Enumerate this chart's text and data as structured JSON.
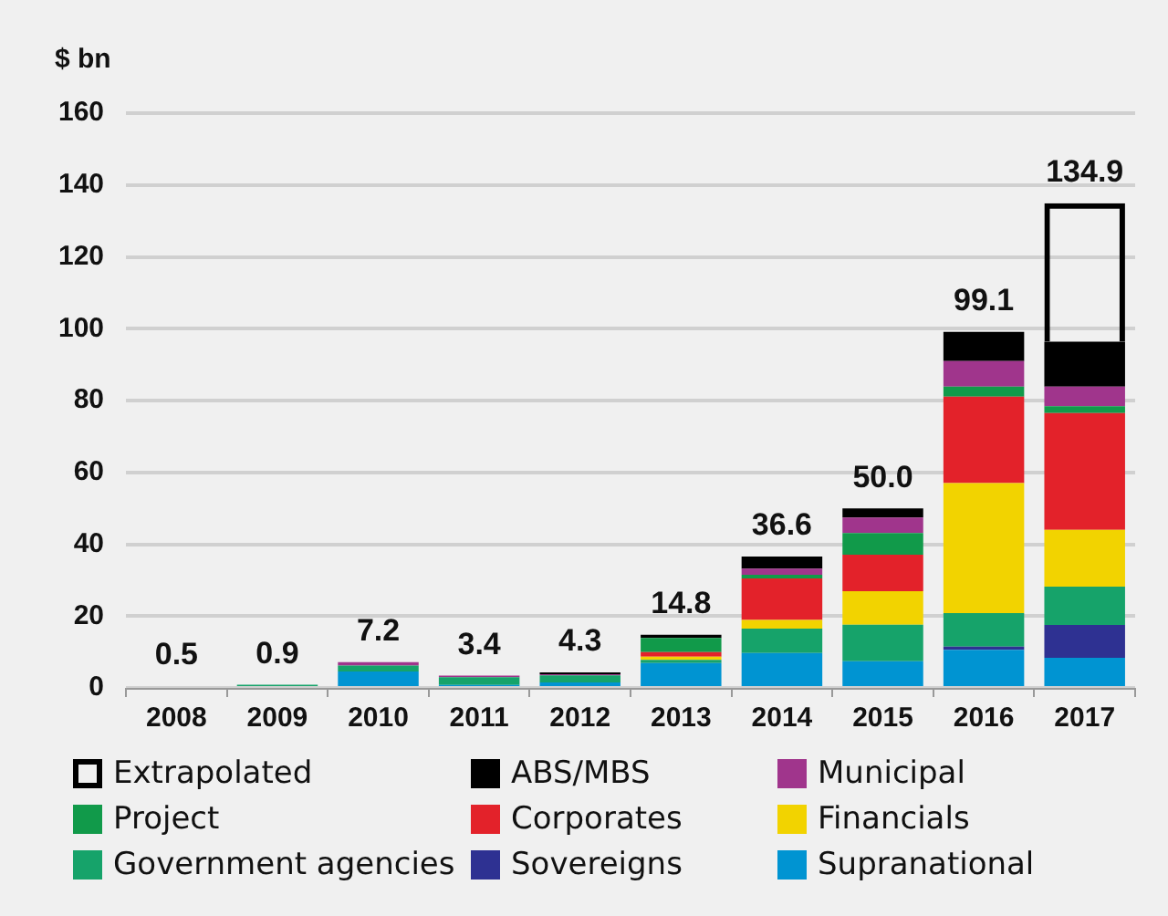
{
  "chart_data": {
    "type": "bar",
    "ylabel": "$ bn",
    "stacked": true,
    "grid": "y",
    "legend": "bottom",
    "categories": [
      "2008",
      "2009",
      "2010",
      "2011",
      "2012",
      "2013",
      "2014",
      "2015",
      "2016",
      "2017"
    ],
    "ylim": [
      0,
      160
    ],
    "yticks": [
      0,
      20,
      40,
      60,
      80,
      100,
      120,
      140,
      160
    ],
    "totals": [
      "0.5",
      "0.9",
      "7.2",
      "3.4",
      "4.3",
      "14.8",
      "36.6",
      "50.0",
      "99.1",
      "134.9"
    ],
    "series": [
      {
        "name": "Supranational",
        "color": "#0094d2",
        "values": [
          null,
          null,
          4.6,
          0.8,
          1.5,
          6.9,
          9.7,
          7.4,
          10.6,
          8.4
        ]
      },
      {
        "name": "Sovereigns",
        "color": "#2e3192",
        "values": [
          null,
          null,
          null,
          null,
          null,
          null,
          null,
          null,
          0.9,
          9.1
        ]
      },
      {
        "name": "Government agencies",
        "color": "#16a36a",
        "values": [
          null,
          0.9,
          1.6,
          2.2,
          2.0,
          0.9,
          6.8,
          10.2,
          9.3,
          10.7
        ]
      },
      {
        "name": "Financials",
        "color": "#f2d300",
        "values": [
          null,
          null,
          null,
          null,
          null,
          0.9,
          2.4,
          9.3,
          36.2,
          15.8
        ]
      },
      {
        "name": "Corporates",
        "color": "#e3222a",
        "values": [
          null,
          null,
          null,
          null,
          null,
          1.3,
          11.6,
          10.2,
          24.1,
          32.5
        ]
      },
      {
        "name": "Project",
        "color": "#119a4a",
        "values": [
          null,
          null,
          null,
          null,
          null,
          3.9,
          1.0,
          6.0,
          2.8,
          1.9
        ]
      },
      {
        "name": "Municipal",
        "color": "#a0358c",
        "values": [
          0.5,
          null,
          1.0,
          0.4,
          0.3,
          null,
          1.7,
          4.3,
          7.1,
          5.5
        ]
      },
      {
        "name": "ABS/MBS",
        "color": "#000000",
        "values": [
          null,
          null,
          null,
          null,
          0.5,
          0.9,
          3.4,
          2.6,
          8.1,
          12.5
        ]
      },
      {
        "name": "Extrapolated",
        "color": "#000000",
        "line_style": "dashed",
        "values": [
          null,
          null,
          null,
          null,
          null,
          null,
          null,
          null,
          null,
          38.5
        ]
      }
    ]
  }
}
